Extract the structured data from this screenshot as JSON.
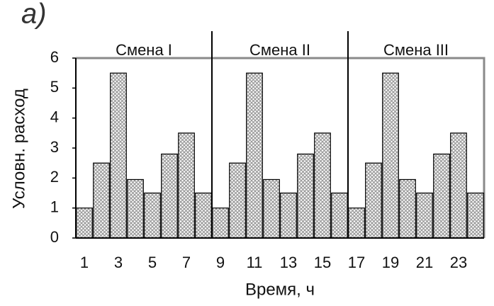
{
  "chart_data": {
    "type": "bar",
    "panel_label": "a)",
    "xlabel": "Время, ч",
    "ylabel": "Условн. расход",
    "categories": [
      "1",
      null,
      "3",
      null,
      "5",
      null,
      "7",
      null,
      "9",
      null,
      "11",
      null,
      "13",
      null,
      "15",
      null,
      "17",
      null,
      "19",
      null,
      "21",
      null,
      "23",
      null
    ],
    "values": [
      1,
      2.5,
      5.5,
      1.95,
      1.5,
      2.8,
      3.5,
      1.5,
      1,
      2.5,
      5.5,
      1.95,
      1.5,
      2.8,
      3.5,
      1.5,
      1,
      2.5,
      5.5,
      1.95,
      1.5,
      2.8,
      3.5,
      1.5
    ],
    "color": "#9a9a9a",
    "ylim": [
      0,
      6
    ],
    "yticks": [
      0,
      1,
      2,
      3,
      4,
      5,
      6
    ],
    "grid": false,
    "annotations": [
      "Смена I",
      "Смена II",
      "Смена III"
    ]
  }
}
